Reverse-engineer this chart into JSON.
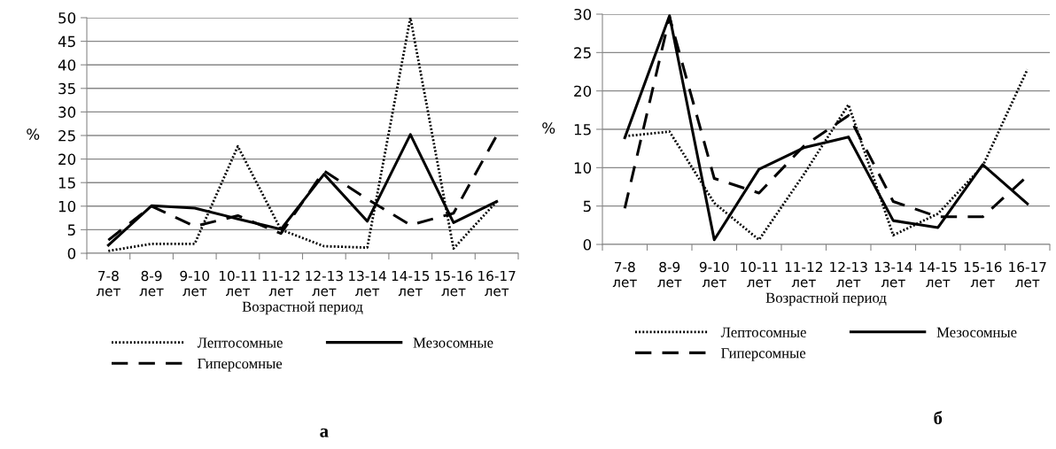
{
  "chart_data": [
    {
      "type": "line",
      "xlabel": "Возрастной период",
      "ylabel": "%",
      "categories": [
        "7-8\nлет",
        "8-9\nлет",
        "9-10\nлет",
        "10-11\nлет",
        "11-12\nлет",
        "12-13\nлет",
        "13-14\nлет",
        "14-15\nлет",
        "15-16\nлет",
        "16-17\nлет"
      ],
      "series": [
        {
          "name": "Лептосомные",
          "color": "#000000",
          "line_style": "dotted",
          "values": [
            0.5,
            2,
            2,
            22.7,
            5,
            1.5,
            1.2,
            50,
            1,
            11
          ]
        },
        {
          "name": "Мезосомные",
          "color": "#000000",
          "line_style": "solid",
          "values": [
            1.7,
            10.1,
            9.6,
            7.3,
            5.1,
            16.8,
            6.8,
            25.2,
            6.5,
            11
          ]
        },
        {
          "name": "Гиперсомные",
          "color": "#000000",
          "line_style": "dashed",
          "values": [
            2.8,
            10,
            5.7,
            8,
            4.2,
            17.5,
            11.5,
            6,
            8.5,
            25
          ]
        }
      ],
      "ylim": [
        0,
        50
      ],
      "yticks": [
        0,
        5,
        10,
        15,
        20,
        25,
        30,
        35,
        40,
        45,
        50
      ],
      "grid": "y",
      "legend": "bottom",
      "marker": "none",
      "annotations": [
        "а"
      ]
    },
    {
      "type": "line",
      "xlabel": "Возрастной период",
      "ylabel": "%",
      "categories": [
        "7-8\nлет",
        "8-9\nлет",
        "9-10\nлет",
        "10-11\nлет",
        "11-12\nлет",
        "12-13\nлет",
        "13-14\nлет",
        "14-15\nлет",
        "15-16\nлет",
        "16-17\nлет"
      ],
      "series": [
        {
          "name": "Лептосомные",
          "color": "#000000",
          "line_style": "dotted",
          "values": [
            14.1,
            14.7,
            5.4,
            0.6,
            9.1,
            18.2,
            1.2,
            4,
            10.2,
            22.8
          ]
        },
        {
          "name": "Мезосомные",
          "color": "#000000",
          "line_style": "solid",
          "values": [
            13.9,
            29.8,
            0.6,
            9.8,
            12.6,
            14,
            3.1,
            2.2,
            10.4,
            5.3
          ]
        },
        {
          "name": "Гиперсомные",
          "color": "#000000",
          "line_style": "dashed",
          "values": [
            4.7,
            29.6,
            8.6,
            6.7,
            12.8,
            16.8,
            5.6,
            3.6,
            3.6,
            8.9
          ]
        }
      ],
      "ylim": [
        0,
        30
      ],
      "yticks": [
        0,
        5,
        10,
        15,
        20,
        25,
        30
      ],
      "grid": "y",
      "legend": "bottom",
      "marker": "none",
      "annotations": [
        "б"
      ]
    }
  ]
}
